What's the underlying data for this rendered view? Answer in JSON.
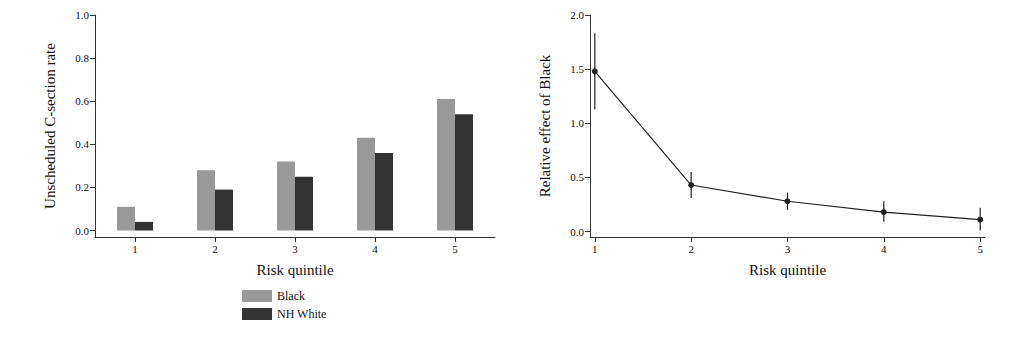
{
  "chart_data": [
    {
      "type": "bar",
      "categories": [
        "1",
        "2",
        "3",
        "4",
        "5"
      ],
      "series": [
        {
          "name": "Black",
          "color": "#999999",
          "values": [
            0.11,
            0.28,
            0.32,
            0.43,
            0.61
          ]
        },
        {
          "name": "NH White",
          "color": "#333333",
          "values": [
            0.04,
            0.19,
            0.25,
            0.36,
            0.54
          ]
        }
      ],
      "x_label": "Risk quintile",
      "y_label": "Unscheduled C-section rate",
      "ylim": [
        -0.03,
        1.0
      ],
      "yticks": [
        {
          "value": 0,
          "label": "0.0"
        },
        0.2,
        0.4,
        0.6,
        0.8,
        {
          "value": 1,
          "label": "1.0"
        }
      ],
      "grid": false,
      "legend": "bottom"
    },
    {
      "type": "line",
      "x": [
        1,
        2,
        3,
        4,
        5
      ],
      "values": [
        1.48,
        0.43,
        0.28,
        0.18,
        0.11
      ],
      "ci_low": [
        1.13,
        0.31,
        0.2,
        0.09,
        0.01
      ],
      "ci_high": [
        1.83,
        0.55,
        0.36,
        0.28,
        0.22
      ],
      "color": "#222222",
      "marker": "circle",
      "x_label": "Risk quintile",
      "y_label": "Relative effect of Black",
      "xlim": [
        0.95,
        5.05
      ],
      "xticks": [
        1,
        2,
        3,
        4,
        5
      ],
      "ylim": [
        -0.05,
        2.0
      ],
      "yticks": [
        {
          "value": 0,
          "label": "0.0"
        },
        0.5,
        {
          "value": 1,
          "label": "1.0"
        },
        1.5,
        {
          "value": 2,
          "label": "2.0"
        }
      ],
      "grid": false
    }
  ]
}
